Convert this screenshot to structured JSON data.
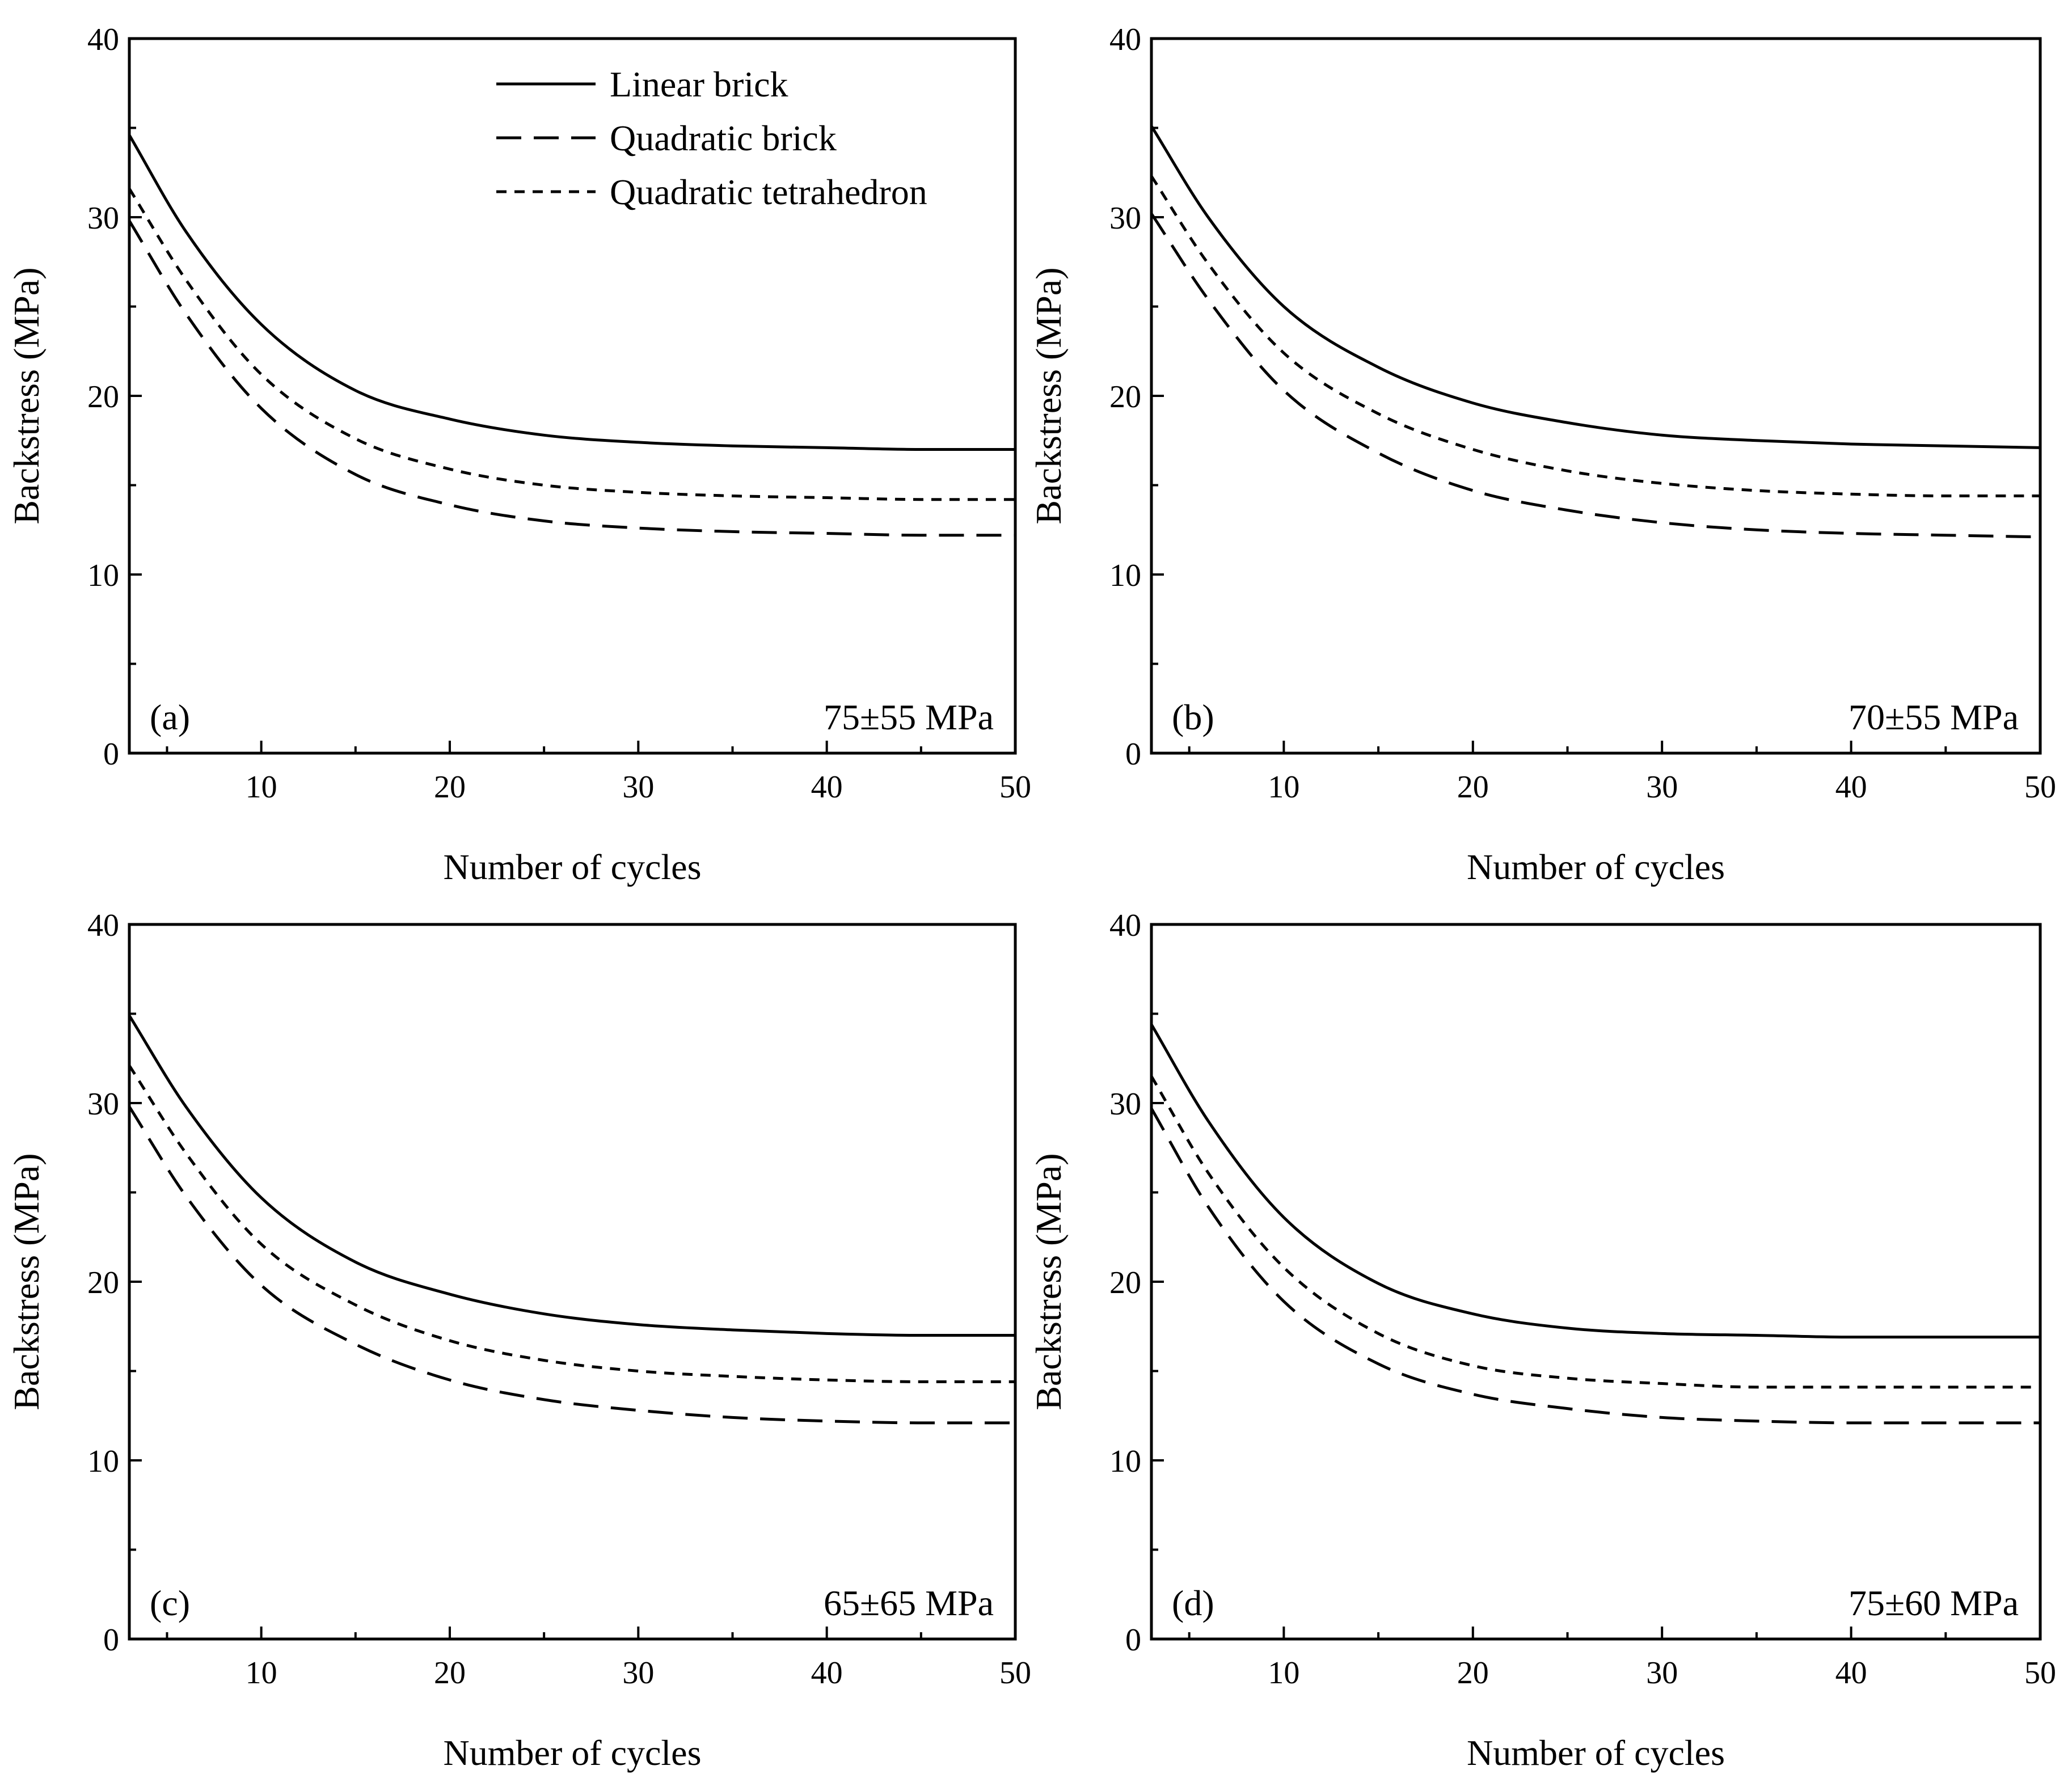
{
  "figure": {
    "legend": [
      {
        "name": "Linear brick",
        "style": "solid"
      },
      {
        "name": "Quadratic brick",
        "style": "dashed"
      },
      {
        "name": "Quadratic tetrahedron",
        "style": "dotted"
      }
    ]
  },
  "chart_data": [
    {
      "type": "line",
      "panel_label": "(a)",
      "condition": "75±55 MPa",
      "xlabel": "Number of cycles",
      "ylabel": "Backstress (MPa)",
      "xlim": [
        3,
        50
      ],
      "ylim": [
        0,
        40
      ],
      "xticks": [
        "10",
        "20",
        "30",
        "40",
        "50"
      ],
      "yticks": [
        "0",
        "10",
        "20",
        "30",
        "40"
      ],
      "legend_shown": true,
      "legend_position": "top-right",
      "series": [
        {
          "name": "Linear brick",
          "style": "solid",
          "x": [
            3,
            6,
            10,
            15,
            20,
            25,
            30,
            35,
            40,
            45,
            50
          ],
          "y": [
            34.6,
            29.2,
            24.0,
            20.3,
            18.7,
            17.8,
            17.4,
            17.2,
            17.1,
            17.0,
            17.0
          ]
        },
        {
          "name": "Quadratic brick",
          "style": "dashed",
          "x": [
            3,
            6,
            10,
            15,
            20,
            25,
            30,
            35,
            40,
            45,
            50
          ],
          "y": [
            29.8,
            24.6,
            19.3,
            15.6,
            13.9,
            13.0,
            12.6,
            12.4,
            12.3,
            12.2,
            12.2
          ]
        },
        {
          "name": "Quadratic tetrahedron",
          "style": "dotted",
          "x": [
            3,
            6,
            10,
            15,
            20,
            25,
            30,
            35,
            40,
            45,
            50
          ],
          "y": [
            31.6,
            26.5,
            21.2,
            17.6,
            15.9,
            15.0,
            14.6,
            14.4,
            14.3,
            14.2,
            14.2
          ]
        }
      ]
    },
    {
      "type": "line",
      "panel_label": "(b)",
      "condition": "70±55 MPa",
      "xlabel": "Number of cycles",
      "ylabel": "Backstress (MPa)",
      "xlim": [
        3,
        50
      ],
      "ylim": [
        0,
        40
      ],
      "xticks": [
        "10",
        "20",
        "30",
        "40",
        "50"
      ],
      "yticks": [
        "0",
        "10",
        "20",
        "30",
        "40"
      ],
      "legend_shown": false,
      "series": [
        {
          "name": "Linear brick",
          "style": "solid",
          "x": [
            3,
            6,
            10,
            15,
            20,
            25,
            30,
            35,
            40,
            45,
            50
          ],
          "y": [
            35.1,
            30.0,
            25.0,
            21.6,
            19.6,
            18.5,
            17.8,
            17.5,
            17.3,
            17.2,
            17.1
          ]
        },
        {
          "name": "Quadratic brick",
          "style": "dashed",
          "x": [
            3,
            6,
            10,
            15,
            20,
            25,
            30,
            35,
            40,
            45,
            50
          ],
          "y": [
            30.2,
            25.4,
            20.3,
            16.8,
            14.7,
            13.6,
            12.9,
            12.5,
            12.3,
            12.2,
            12.1
          ]
        },
        {
          "name": "Quadratic tetrahedron",
          "style": "dotted",
          "x": [
            3,
            6,
            10,
            15,
            20,
            25,
            30,
            35,
            40,
            45,
            50
          ],
          "y": [
            32.3,
            27.4,
            22.4,
            19.0,
            17.0,
            15.8,
            15.1,
            14.7,
            14.5,
            14.4,
            14.4
          ]
        }
      ]
    },
    {
      "type": "line",
      "panel_label": "(c)",
      "condition": "65±65 MPa",
      "xlabel": "Number of cycles",
      "ylabel": "Backstress (MPa)",
      "xlim": [
        3,
        50
      ],
      "ylim": [
        0,
        40
      ],
      "xticks": [
        "10",
        "20",
        "30",
        "40",
        "50"
      ],
      "yticks": [
        "0",
        "10",
        "20",
        "30",
        "40"
      ],
      "legend_shown": false,
      "series": [
        {
          "name": "Linear brick",
          "style": "solid",
          "x": [
            3,
            6,
            10,
            15,
            20,
            25,
            30,
            35,
            40,
            45,
            50
          ],
          "y": [
            34.9,
            29.8,
            24.7,
            21.1,
            19.3,
            18.2,
            17.6,
            17.3,
            17.1,
            17.0,
            17.0
          ]
        },
        {
          "name": "Quadratic brick",
          "style": "dashed",
          "x": [
            3,
            6,
            10,
            15,
            20,
            25,
            30,
            35,
            40,
            45,
            50
          ],
          "y": [
            29.8,
            24.8,
            19.8,
            16.5,
            14.5,
            13.4,
            12.8,
            12.4,
            12.2,
            12.1,
            12.1
          ]
        },
        {
          "name": "Quadratic tetrahedron",
          "style": "dotted",
          "x": [
            3,
            6,
            10,
            15,
            20,
            25,
            30,
            35,
            40,
            45,
            50
          ],
          "y": [
            32.1,
            27.2,
            22.1,
            18.7,
            16.7,
            15.6,
            15.0,
            14.7,
            14.5,
            14.4,
            14.4
          ]
        }
      ]
    },
    {
      "type": "line",
      "panel_label": "(d)",
      "condition": "75±60 MPa",
      "xlabel": "Number of cycles",
      "ylabel": "Backstress (MPa)",
      "xlim": [
        3,
        50
      ],
      "ylim": [
        0,
        40
      ],
      "xticks": [
        "10",
        "20",
        "30",
        "40",
        "50"
      ],
      "yticks": [
        "0",
        "10",
        "20",
        "30",
        "40"
      ],
      "legend_shown": false,
      "series": [
        {
          "name": "Linear brick",
          "style": "solid",
          "x": [
            3,
            6,
            10,
            15,
            20,
            25,
            30,
            35,
            40,
            45,
            50
          ],
          "y": [
            34.4,
            29.0,
            23.6,
            19.9,
            18.2,
            17.4,
            17.1,
            17.0,
            16.9,
            16.9,
            16.9
          ]
        },
        {
          "name": "Quadratic brick",
          "style": "dashed",
          "x": [
            3,
            6,
            10,
            15,
            20,
            25,
            30,
            35,
            40,
            45,
            50
          ],
          "y": [
            29.7,
            24.2,
            18.9,
            15.4,
            13.7,
            12.9,
            12.4,
            12.2,
            12.1,
            12.1,
            12.1
          ]
        },
        {
          "name": "Quadratic tetrahedron",
          "style": "dotted",
          "x": [
            3,
            6,
            10,
            15,
            20,
            25,
            30,
            35,
            40,
            45,
            50
          ],
          "y": [
            31.5,
            26.1,
            20.8,
            17.1,
            15.3,
            14.6,
            14.3,
            14.1,
            14.1,
            14.1,
            14.1
          ]
        }
      ]
    }
  ]
}
